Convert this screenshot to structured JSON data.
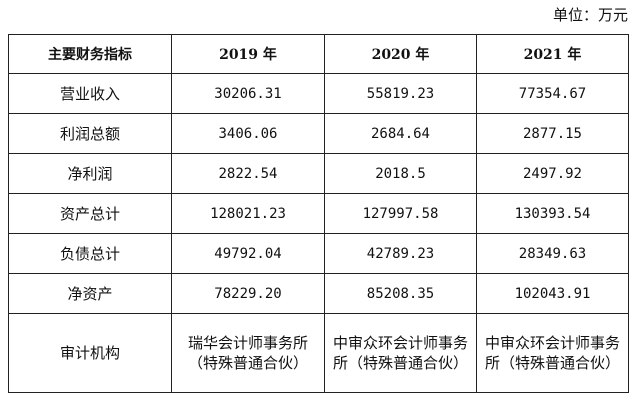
{
  "unit_label": "单位：万元",
  "table": {
    "headers": [
      "主要财务指标",
      "2019 年",
      "2020 年",
      "2021 年"
    ],
    "rows": [
      {
        "label": "营业收入",
        "values": [
          "30206.31",
          "55819.23",
          "77354.67"
        ]
      },
      {
        "label": "利润总额",
        "values": [
          "3406.06",
          "2684.64",
          "2877.15"
        ]
      },
      {
        "label": "净利润",
        "values": [
          "2822.54",
          "2018.5",
          "2497.92"
        ]
      },
      {
        "label": "资产总计",
        "values": [
          "128021.23",
          "127997.58",
          "130393.54"
        ]
      },
      {
        "label": "负债总计",
        "values": [
          "49792.04",
          "42789.23",
          "28349.63"
        ]
      },
      {
        "label": "净资产",
        "values": [
          "78229.20",
          "85208.35",
          "102043.91"
        ]
      },
      {
        "label": "审计机构",
        "values": [
          "瑞华会计师事务所（特殊普通合伙）",
          "中审众环会计师事务所（特殊普通合伙）",
          "中审众环会计师事务所（特殊普通合伙）"
        ]
      }
    ]
  }
}
